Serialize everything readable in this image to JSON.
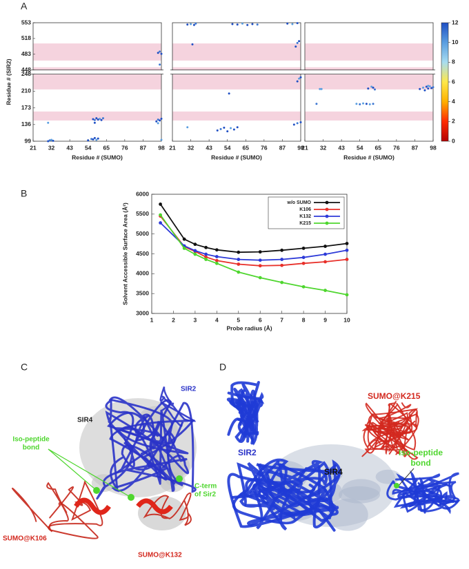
{
  "panel_labels": [
    "A",
    "B",
    "C",
    "D"
  ],
  "chart_data": [
    {
      "type": "contact",
      "xlabel": "Residue # (SUMO)",
      "ylabel": "Residue # (SIR2)",
      "xlim": [
        21,
        98
      ],
      "xticks": [
        21,
        32,
        43,
        54,
        65,
        76,
        87,
        98
      ],
      "ylim": [
        99,
        553
      ],
      "ybreak": [
        248,
        448
      ],
      "yticks": [
        99,
        136,
        173,
        210,
        248,
        448,
        483,
        518,
        553
      ],
      "bands": [
        [
          469,
          507
        ],
        [
          448,
          454
        ],
        [
          214,
          248
        ],
        [
          145,
          165
        ]
      ],
      "band_color": "#f5d3de",
      "points": {
        "x": [
          30,
          31,
          33,
          32,
          54,
          56,
          57,
          58,
          59,
          60,
          57,
          58,
          59,
          60,
          61,
          62,
          63,
          58,
          95,
          96,
          97,
          98,
          96,
          96,
          97,
          98,
          97,
          30,
          98
        ],
        "y": [
          99,
          101,
          100,
          102,
          101,
          104,
          103,
          106,
          102,
          105,
          148,
          146,
          150,
          147,
          149,
          146,
          150,
          140,
          143,
          147,
          145,
          149,
          139,
          486,
          489,
          484,
          460,
          140,
          102
        ],
        "values": [
          12,
          11,
          12,
          10,
          12,
          11,
          12,
          12,
          10,
          12,
          12,
          11,
          12,
          12,
          10,
          12,
          11,
          12,
          12,
          11,
          12,
          12,
          10,
          12,
          11,
          12,
          11,
          10,
          10
        ]
      }
    },
    {
      "type": "contact",
      "xlabel": "Residue # (SUMO)",
      "xlim": [
        21,
        98
      ],
      "xticks": [
        21,
        32,
        43,
        54,
        65,
        76,
        87,
        98
      ],
      "ylim": [
        99,
        553
      ],
      "ybreak": [
        248,
        448
      ],
      "bands": [
        [
          469,
          507
        ],
        [
          448,
          454
        ],
        [
          214,
          248
        ],
        [
          145,
          165
        ]
      ],
      "band_color": "#f5d3de",
      "points": {
        "x": [
          30,
          32,
          34,
          35,
          57,
          60,
          63,
          66,
          69,
          72,
          90,
          93,
          96,
          33,
          95,
          96,
          97,
          96,
          97,
          98,
          55,
          48,
          50,
          52,
          54,
          56,
          58,
          60,
          30,
          94,
          96,
          98
        ],
        "y": [
          549,
          550,
          548,
          551,
          550,
          549,
          551,
          548,
          550,
          549,
          551,
          550,
          552,
          505,
          500,
          508,
          512,
          232,
          238,
          241,
          205,
          123,
          126,
          129,
          121,
          128,
          125,
          130,
          130,
          136,
          139,
          141
        ],
        "values": [
          12,
          10,
          12,
          11,
          12,
          12,
          10,
          12,
          12,
          11,
          12,
          10,
          12,
          12,
          12,
          11,
          12,
          12,
          10,
          12,
          12,
          12,
          11,
          12,
          12,
          10,
          12,
          12,
          10,
          12,
          11,
          12
        ]
      }
    },
    {
      "type": "contact",
      "xlabel": "Residue # (SUMO)",
      "xlim": [
        21,
        98
      ],
      "xticks": [
        21,
        32,
        43,
        54,
        65,
        76,
        87,
        98
      ],
      "ylim": [
        99,
        553
      ],
      "ybreak": [
        248,
        448
      ],
      "bands": [
        [
          469,
          507
        ],
        [
          448,
          454
        ],
        [
          214,
          248
        ],
        [
          145,
          165
        ]
      ],
      "band_color": "#f5d3de",
      "points": {
        "x": [
          30,
          31,
          28,
          52,
          54,
          56,
          58,
          60,
          62,
          59,
          61,
          62,
          63,
          90,
          92,
          94,
          95,
          96,
          97,
          98,
          93,
          95
        ],
        "y": [
          215,
          215,
          182,
          182,
          181,
          183,
          182,
          181,
          182,
          216,
          220,
          218,
          214,
          215,
          218,
          220,
          216,
          221,
          217,
          219,
          212,
          222
        ],
        "values": [
          10,
          10,
          11,
          10,
          11,
          10,
          12,
          10,
          11,
          12,
          10,
          12,
          11,
          12,
          10,
          12,
          12,
          10,
          12,
          11,
          12,
          10
        ]
      },
      "colorbar": {
        "lim": [
          0,
          12
        ],
        "ticks": [
          0,
          2,
          4,
          6,
          8,
          10,
          12
        ],
        "colors": [
          "#b30000",
          "#ff2a00",
          "#ffb000",
          "#ffe84a",
          "#a8dcf0",
          "#5a9ee0",
          "#1f4fc4"
        ]
      }
    },
    {
      "type": "line",
      "xlabel": "Probe radius (Å)",
      "ylabel": "Solvent Accessible Surface Area (Å²)",
      "x": [
        1.4,
        2.5,
        3,
        3.5,
        4,
        5,
        6,
        7,
        8,
        9,
        10
      ],
      "xlim": [
        1,
        10
      ],
      "xticks": [
        1,
        2,
        3,
        4,
        5,
        6,
        7,
        8,
        9,
        10
      ],
      "ylim": [
        3000,
        6000
      ],
      "yticks": [
        3000,
        3500,
        4000,
        4500,
        5000,
        5500,
        6000
      ],
      "legend": "upper right",
      "series": [
        {
          "name": "w/o SUMO",
          "color": "#111111",
          "values": [
            5750,
            4870,
            4740,
            4660,
            4600,
            4540,
            4550,
            4590,
            4640,
            4690,
            4760
          ]
        },
        {
          "name": "K106",
          "color": "#e8302a",
          "values": [
            5450,
            4680,
            4560,
            4420,
            4330,
            4240,
            4200,
            4210,
            4260,
            4300,
            4360
          ]
        },
        {
          "name": "K132",
          "color": "#2d3ad8",
          "values": [
            5280,
            4700,
            4580,
            4490,
            4430,
            4360,
            4340,
            4360,
            4410,
            4490,
            4590
          ]
        },
        {
          "name": "K215",
          "color": "#4ed62e",
          "values": [
            5480,
            4640,
            4490,
            4360,
            4260,
            4040,
            3900,
            3780,
            3670,
            3580,
            3470
          ]
        }
      ]
    }
  ],
  "image_c": {
    "sir2": "SIR2",
    "sir4": "SIR4",
    "bond": [
      "Iso-peptide",
      "bond"
    ],
    "cterm": [
      "C-term",
      "of Sir2"
    ],
    "k106": "SUMO@K106",
    "k132": "SUMO@K132"
  },
  "image_d": {
    "k215": "SUMO@K215",
    "sir2": "SIR2",
    "sir4": "SIR4",
    "bond": [
      "Iso-peptide",
      "bond"
    ]
  }
}
